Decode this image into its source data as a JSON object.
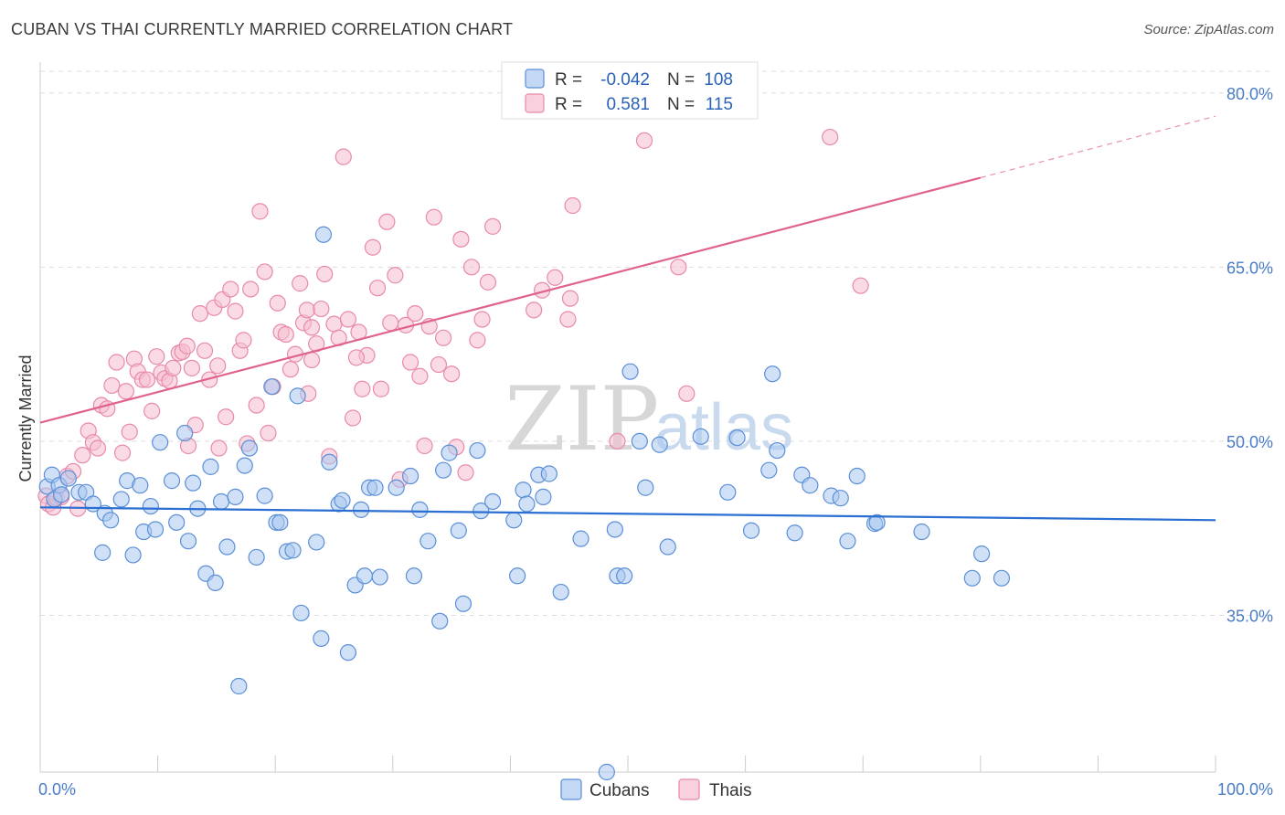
{
  "title": "CUBAN VS THAI CURRENTLY MARRIED CORRELATION CHART",
  "source": "Source: ZipAtlas.com",
  "watermark": {
    "zip": "ZIP",
    "atlas": "atlas"
  },
  "colors": {
    "cuban_fill": "#aac8f0",
    "cuban_stroke": "#5b8fd6",
    "cuban_line": "#2a6fd1",
    "thai_fill": "#f6bdd0",
    "thai_stroke": "#e88aa8",
    "thai_line": "#e0628e",
    "grid": "#dddddd",
    "tick_text": "#4a7cc7"
  },
  "legend": {
    "rows": [
      {
        "r_label": "R =",
        "r_value": "-0.042",
        "n_label": "N =",
        "n_value": "108"
      },
      {
        "r_label": "R =",
        "r_value": "0.581",
        "n_label": "N =",
        "n_value": "115"
      }
    ]
  },
  "chart_data": {
    "type": "scatter",
    "title": "CUBAN VS THAI CURRENTLY MARRIED CORRELATION CHART",
    "xlabel": "",
    "ylabel": "Currently Married",
    "xlim": [
      0,
      100
    ],
    "ylim": [
      21.5,
      82.5
    ],
    "x_tick_labels": [
      "0.0%",
      "100.0%"
    ],
    "y_ticks": [
      35,
      50,
      65,
      80
    ],
    "y_tick_labels": [
      "35.0%",
      "50.0%",
      "65.0%",
      "80.0%"
    ],
    "grid": true,
    "legend_position": "top-center",
    "series": [
      {
        "name": "Cubans",
        "r": -0.042,
        "n": 108,
        "trend": {
          "x": [
            0,
            100
          ],
          "y": [
            44.3,
            43.2
          ]
        },
        "points": [
          [
            0.6,
            46.1
          ],
          [
            1.0,
            47.1
          ],
          [
            1.2,
            45.0
          ],
          [
            1.6,
            46.2
          ],
          [
            1.8,
            45.4
          ],
          [
            2.4,
            46.8
          ],
          [
            3.3,
            45.6
          ],
          [
            3.9,
            45.6
          ],
          [
            4.5,
            44.6
          ],
          [
            5.5,
            43.8
          ],
          [
            6.0,
            43.2
          ],
          [
            5.3,
            40.4
          ],
          [
            6.9,
            45.0
          ],
          [
            7.4,
            46.6
          ],
          [
            7.9,
            40.2
          ],
          [
            8.5,
            46.2
          ],
          [
            8.8,
            42.2
          ],
          [
            9.4,
            44.4
          ],
          [
            9.8,
            42.4
          ],
          [
            10.2,
            49.9
          ],
          [
            11.2,
            46.6
          ],
          [
            11.6,
            43.0
          ],
          [
            12.3,
            50.7
          ],
          [
            12.6,
            41.4
          ],
          [
            13.0,
            46.4
          ],
          [
            13.4,
            44.2
          ],
          [
            14.1,
            38.6
          ],
          [
            14.5,
            47.8
          ],
          [
            14.9,
            37.8
          ],
          [
            15.4,
            44.8
          ],
          [
            15.9,
            40.9
          ],
          [
            16.6,
            45.2
          ],
          [
            16.9,
            28.9
          ],
          [
            17.4,
            47.9
          ],
          [
            17.8,
            49.4
          ],
          [
            18.4,
            40.0
          ],
          [
            19.1,
            45.3
          ],
          [
            19.7,
            54.7
          ],
          [
            20.1,
            43.0
          ],
          [
            20.4,
            43.0
          ],
          [
            21.0,
            40.5
          ],
          [
            21.5,
            40.6
          ],
          [
            21.9,
            53.9
          ],
          [
            22.2,
            35.2
          ],
          [
            23.5,
            41.3
          ],
          [
            23.9,
            33.0
          ],
          [
            24.6,
            48.2
          ],
          [
            25.4,
            44.6
          ],
          [
            25.7,
            44.9
          ],
          [
            26.2,
            31.8
          ],
          [
            26.8,
            37.6
          ],
          [
            27.3,
            44.1
          ],
          [
            27.6,
            38.4
          ],
          [
            28.0,
            46.0
          ],
          [
            28.5,
            46.0
          ],
          [
            28.9,
            38.3
          ],
          [
            30.3,
            46.0
          ],
          [
            31.5,
            47.0
          ],
          [
            31.8,
            38.4
          ],
          [
            32.3,
            44.1
          ],
          [
            33.0,
            41.4
          ],
          [
            34.0,
            34.5
          ],
          [
            34.3,
            47.5
          ],
          [
            34.8,
            49.0
          ],
          [
            35.6,
            42.3
          ],
          [
            36.0,
            36.0
          ],
          [
            37.2,
            49.2
          ],
          [
            37.5,
            44.0
          ],
          [
            38.5,
            44.8
          ],
          [
            40.3,
            43.2
          ],
          [
            40.6,
            38.4
          ],
          [
            41.1,
            45.8
          ],
          [
            41.4,
            44.6
          ],
          [
            42.4,
            47.1
          ],
          [
            42.8,
            45.2
          ],
          [
            43.3,
            47.2
          ],
          [
            44.3,
            37.0
          ],
          [
            46.0,
            41.6
          ],
          [
            48.9,
            42.4
          ],
          [
            49.1,
            38.4
          ],
          [
            50.2,
            56.0
          ],
          [
            51.0,
            50.0
          ],
          [
            51.5,
            46.0
          ],
          [
            52.7,
            49.7
          ],
          [
            53.4,
            40.9
          ],
          [
            56.2,
            50.4
          ],
          [
            58.5,
            45.6
          ],
          [
            60.5,
            42.3
          ],
          [
            62.0,
            47.5
          ],
          [
            62.3,
            55.8
          ],
          [
            62.7,
            49.2
          ],
          [
            64.2,
            42.1
          ],
          [
            64.8,
            47.1
          ],
          [
            65.5,
            46.2
          ],
          [
            67.3,
            45.3
          ],
          [
            68.1,
            45.1
          ],
          [
            68.7,
            41.4
          ],
          [
            69.5,
            47.0
          ],
          [
            71.0,
            42.9
          ],
          [
            71.2,
            43.0
          ],
          [
            75.0,
            42.2
          ],
          [
            79.3,
            38.2
          ],
          [
            80.1,
            40.3
          ],
          [
            81.8,
            38.2
          ],
          [
            49.7,
            38.4
          ],
          [
            59.3,
            50.3
          ],
          [
            48.2,
            21.5
          ],
          [
            24.1,
            67.8
          ]
        ]
      },
      {
        "name": "Thais",
        "r": 0.581,
        "n": 115,
        "trend": {
          "x": [
            0,
            80
          ],
          "y": [
            51.6,
            72.7
          ]
        },
        "trend_dashed": {
          "x": [
            80,
            100
          ],
          "y": [
            72.7,
            78.0
          ]
        },
        "points": [
          [
            0.5,
            45.3
          ],
          [
            0.7,
            44.6
          ],
          [
            1.1,
            44.3
          ],
          [
            1.4,
            45.1
          ],
          [
            1.8,
            45.2
          ],
          [
            2.3,
            47.0
          ],
          [
            2.8,
            47.4
          ],
          [
            3.2,
            44.2
          ],
          [
            3.6,
            48.8
          ],
          [
            4.1,
            50.9
          ],
          [
            4.5,
            49.9
          ],
          [
            4.9,
            49.4
          ],
          [
            5.2,
            53.1
          ],
          [
            5.7,
            52.8
          ],
          [
            6.1,
            54.8
          ],
          [
            6.5,
            56.8
          ],
          [
            7.0,
            49.0
          ],
          [
            7.3,
            54.3
          ],
          [
            7.6,
            50.8
          ],
          [
            8.0,
            57.1
          ],
          [
            8.3,
            56.0
          ],
          [
            8.7,
            55.3
          ],
          [
            9.1,
            55.3
          ],
          [
            9.5,
            52.6
          ],
          [
            9.9,
            57.3
          ],
          [
            10.3,
            55.9
          ],
          [
            10.6,
            55.4
          ],
          [
            11.0,
            55.2
          ],
          [
            11.3,
            56.3
          ],
          [
            11.8,
            57.6
          ],
          [
            12.1,
            57.7
          ],
          [
            12.5,
            58.2
          ],
          [
            12.9,
            56.3
          ],
          [
            13.2,
            51.4
          ],
          [
            13.6,
            61.0
          ],
          [
            14.0,
            57.8
          ],
          [
            14.4,
            55.3
          ],
          [
            14.8,
            61.5
          ],
          [
            15.1,
            56.5
          ],
          [
            15.5,
            62.2
          ],
          [
            15.8,
            52.1
          ],
          [
            16.2,
            63.1
          ],
          [
            16.6,
            61.2
          ],
          [
            17.0,
            57.8
          ],
          [
            17.3,
            58.7
          ],
          [
            17.6,
            49.8
          ],
          [
            17.9,
            63.1
          ],
          [
            18.4,
            53.1
          ],
          [
            18.7,
            69.8
          ],
          [
            19.1,
            64.6
          ],
          [
            19.4,
            50.7
          ],
          [
            19.8,
            54.7
          ],
          [
            20.2,
            61.9
          ],
          [
            20.5,
            59.4
          ],
          [
            20.9,
            59.2
          ],
          [
            21.3,
            56.2
          ],
          [
            21.7,
            57.5
          ],
          [
            22.1,
            63.6
          ],
          [
            22.4,
            60.2
          ],
          [
            22.7,
            61.3
          ],
          [
            23.1,
            59.8
          ],
          [
            23.5,
            58.4
          ],
          [
            23.9,
            61.4
          ],
          [
            24.2,
            64.4
          ],
          [
            24.6,
            48.7
          ],
          [
            25.0,
            60.1
          ],
          [
            25.4,
            58.9
          ],
          [
            25.8,
            74.5
          ],
          [
            26.2,
            60.5
          ],
          [
            26.6,
            52.0
          ],
          [
            27.1,
            59.4
          ],
          [
            27.4,
            54.5
          ],
          [
            27.8,
            57.4
          ],
          [
            28.3,
            66.7
          ],
          [
            28.7,
            63.2
          ],
          [
            29.0,
            54.5
          ],
          [
            29.5,
            68.9
          ],
          [
            29.8,
            60.2
          ],
          [
            30.2,
            64.3
          ],
          [
            30.6,
            46.7
          ],
          [
            31.1,
            60.0
          ],
          [
            31.5,
            56.8
          ],
          [
            31.9,
            61.0
          ],
          [
            32.3,
            55.6
          ],
          [
            32.7,
            49.6
          ],
          [
            33.1,
            59.9
          ],
          [
            33.5,
            69.3
          ],
          [
            33.9,
            56.6
          ],
          [
            34.3,
            58.9
          ],
          [
            35.0,
            55.8
          ],
          [
            35.4,
            49.5
          ],
          [
            35.8,
            67.4
          ],
          [
            36.2,
            47.3
          ],
          [
            36.7,
            65.0
          ],
          [
            37.2,
            58.7
          ],
          [
            37.6,
            60.5
          ],
          [
            38.1,
            63.7
          ],
          [
            38.5,
            68.5
          ],
          [
            44.9,
            60.5
          ],
          [
            45.3,
            70.3
          ],
          [
            45.1,
            62.3
          ],
          [
            43.8,
            64.1
          ],
          [
            42.7,
            63.0
          ],
          [
            42.0,
            61.3
          ],
          [
            49.1,
            50.0
          ],
          [
            51.4,
            75.9
          ],
          [
            55.0,
            54.1
          ],
          [
            54.3,
            65.0
          ],
          [
            67.2,
            76.2
          ],
          [
            69.8,
            63.4
          ],
          [
            22.8,
            54.1
          ],
          [
            23.1,
            57.0
          ],
          [
            15.2,
            49.4
          ],
          [
            12.6,
            49.6
          ],
          [
            26.9,
            57.2
          ]
        ]
      }
    ]
  }
}
